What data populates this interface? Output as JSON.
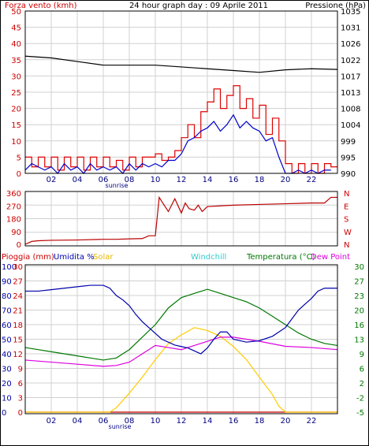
{
  "header": {
    "wind_label": "Forza vento (kmh)",
    "title": "24 hour graph day : 09 Aprile 2011",
    "pressure_label": "Pressione (hPa)"
  },
  "legend_bottom": {
    "rain": "Pioggia (mm)",
    "humidity": "Umidita %",
    "solar": "Solar",
    "windchill": "Windchill",
    "temperature": "Temperatura (°C)",
    "dewpoint": "Dew Point"
  },
  "sunrise_label": "sunrise",
  "colors": {
    "wind_gust": "#dd0000",
    "wind_avg": "#0000cc",
    "pressure": "#000000",
    "direction": "#bb0000",
    "rain": "#cc0000",
    "humidity": "#0000aa",
    "solar": "#ffcc00",
    "windchill": "#00cccc",
    "temperature": "#007700",
    "dewpoint": "#dd00dd",
    "axis_red": "#cc0000",
    "axis_blue": "#0000aa",
    "axis_green": "#007700",
    "grid": "#d0d0d0"
  },
  "chart_data": [
    {
      "type": "line",
      "panel": "wind-pressure",
      "title": "24 hour graph day : 09 Aprile 2011",
      "x_ticks": [
        "02",
        "04",
        "06",
        "08",
        "10",
        "12",
        "14",
        "16",
        "18",
        "20",
        "22"
      ],
      "xlim": [
        0,
        24
      ],
      "ylim_left": [
        0,
        50
      ],
      "yticks_left": [
        0,
        5,
        10,
        15,
        20,
        25,
        30,
        35,
        40,
        45,
        50
      ],
      "ylabel_left": "Forza vento (kmh)",
      "ylim_right": [
        990,
        1035
      ],
      "yticks_right": [
        990,
        995,
        999,
        1004,
        1008,
        1013,
        1017,
        1022,
        1026,
        1031,
        1035
      ],
      "ylabel_right": "Pressione (hPa)",
      "grid": true,
      "series": [
        {
          "name": "Gust",
          "color": "#dd0000",
          "axis": "left",
          "x": [
            0,
            0.5,
            1,
            1.5,
            2,
            2.5,
            3,
            3.5,
            4,
            4.5,
            5,
            5.5,
            6,
            6.5,
            7,
            7.5,
            8,
            8.5,
            9,
            9.5,
            10,
            10.5,
            11,
            11.5,
            12,
            12.5,
            13,
            13.5,
            14,
            14.5,
            15,
            15.5,
            16,
            16.5,
            17,
            17.5,
            18,
            18.5,
            19,
            19.5,
            20,
            20.5,
            21,
            21.5,
            22,
            22.5,
            23,
            23.5
          ],
          "values": [
            5,
            2,
            5,
            2,
            5,
            1,
            5,
            2,
            5,
            1,
            5,
            2,
            5,
            2,
            4,
            1,
            5,
            2,
            5,
            5,
            6,
            4,
            5,
            7,
            11,
            15,
            11,
            19,
            22,
            26,
            20,
            24,
            27,
            20,
            23,
            17,
            21,
            12,
            17,
            10,
            3,
            0,
            3,
            0,
            3,
            0,
            3,
            2
          ]
        },
        {
          "name": "Average",
          "color": "#0000cc",
          "axis": "left",
          "x": [
            0,
            0.5,
            1,
            1.5,
            2,
            2.5,
            3,
            3.5,
            4,
            4.5,
            5,
            5.5,
            6,
            6.5,
            7,
            7.5,
            8,
            8.5,
            9,
            9.5,
            10,
            10.5,
            11,
            11.5,
            12,
            12.5,
            13,
            13.5,
            14,
            14.5,
            15,
            15.5,
            16,
            16.5,
            17,
            17.5,
            18,
            18.5,
            19,
            19.5,
            20,
            20.5,
            21,
            21.5,
            22,
            22.5,
            23,
            23.5
          ],
          "values": [
            1,
            3,
            2,
            1,
            2,
            0,
            3,
            1,
            2,
            0,
            3,
            1,
            2,
            1,
            2,
            0,
            3,
            1,
            3,
            2,
            3,
            2,
            4,
            4,
            6,
            10,
            11,
            13,
            14,
            16,
            13,
            15,
            18,
            14,
            16,
            14,
            13,
            10,
            11,
            5,
            0,
            0,
            1,
            0,
            1,
            0,
            1,
            1
          ]
        },
        {
          "name": "Pressure",
          "color": "#000000",
          "axis": "right",
          "x": [
            0,
            2,
            4,
            6,
            8,
            10,
            12,
            14,
            16,
            18,
            20,
            22,
            24
          ],
          "values": [
            1022.5,
            1022,
            1021,
            1020,
            1020,
            1020,
            1019.5,
            1019,
            1018.5,
            1018,
            1018.7,
            1019,
            1018.8
          ]
        }
      ]
    },
    {
      "type": "line",
      "panel": "wind-direction",
      "xlim": [
        0,
        24
      ],
      "ylim": [
        0,
        360
      ],
      "yticks": [
        0,
        90,
        180,
        270,
        360
      ],
      "right_labels": [
        "N",
        "W",
        "S",
        "E",
        "N"
      ],
      "grid": true,
      "series": [
        {
          "name": "Direction",
          "color": "#bb0000",
          "x": [
            0,
            0.5,
            1,
            2,
            4,
            6,
            7,
            8,
            9,
            9.5,
            10,
            10.3,
            10.5,
            11,
            11.5,
            12,
            12.3,
            12.6,
            13,
            13.3,
            13.6,
            14,
            15,
            16,
            18,
            20,
            22,
            23,
            23.5,
            24
          ],
          "values": [
            0,
            20,
            25,
            28,
            30,
            35,
            35,
            38,
            40,
            60,
            60,
            330,
            300,
            230,
            320,
            220,
            290,
            250,
            240,
            275,
            230,
            265,
            270,
            275,
            280,
            285,
            290,
            290,
            330,
            330
          ]
        }
      ]
    },
    {
      "type": "line",
      "panel": "temperature-humidity",
      "xlim": [
        0,
        24
      ],
      "ylim_humidity": [
        0,
        100
      ],
      "yticks_humidity": [
        0,
        10,
        20,
        30,
        40,
        50,
        60,
        70,
        80,
        90,
        100
      ],
      "yticks_rain": [
        0,
        3,
        6,
        9,
        12,
        15,
        18,
        21,
        24,
        27,
        30
      ],
      "ylim_temperature": [
        -5,
        30
      ],
      "yticks_temperature": [
        -5,
        -2,
        2,
        6,
        9,
        13,
        16,
        20,
        23,
        27,
        30
      ],
      "grid": true,
      "series": [
        {
          "name": "Pioggia (mm)",
          "color": "#cc0000",
          "axis": "rain",
          "x": [
            0,
            24
          ],
          "values": [
            0,
            0
          ]
        },
        {
          "name": "Umidita %",
          "color": "#0000aa",
          "axis": "humidity",
          "x": [
            0,
            1,
            2,
            3,
            4,
            5,
            6,
            6.5,
            7,
            7.5,
            8,
            8.5,
            9,
            9.5,
            10,
            10.5,
            11,
            11.5,
            12,
            12.5,
            13,
            13.5,
            14,
            14.5,
            15,
            15.5,
            16,
            17,
            18,
            19,
            20,
            20.5,
            21,
            21.5,
            22,
            22.5,
            23,
            24
          ],
          "values": [
            83,
            83,
            84,
            85,
            86,
            87,
            87,
            85,
            80,
            77,
            73,
            67,
            62,
            58,
            54,
            50,
            48,
            46,
            45,
            44,
            42,
            40,
            44,
            50,
            55,
            55,
            50,
            48,
            49,
            52,
            58,
            64,
            70,
            74,
            78,
            83,
            85,
            85
          ]
        },
        {
          "name": "Solar",
          "color": "#ffcc00",
          "axis": "humidity",
          "x": [
            0,
            6.5,
            7,
            8,
            9,
            10,
            11,
            12,
            13,
            14,
            15,
            16,
            17,
            18,
            19,
            19.5,
            20,
            24
          ],
          "values": [
            0,
            0,
            3,
            13,
            24,
            36,
            47,
            53,
            58,
            56,
            52,
            45,
            36,
            24,
            12,
            4,
            0,
            0
          ]
        },
        {
          "name": "Temperatura (°C)",
          "color": "#007700",
          "axis": "temperature",
          "x": [
            0,
            1,
            2,
            3,
            4,
            5,
            6,
            7,
            7.5,
            8,
            9,
            10,
            11,
            12,
            13,
            14,
            15,
            16,
            17,
            18,
            19,
            20,
            21,
            22,
            23,
            24
          ],
          "values": [
            10.5,
            10,
            9.5,
            9,
            8.5,
            8,
            7.5,
            8,
            9,
            10,
            13,
            16,
            20,
            22.5,
            23.5,
            24.5,
            23.5,
            22.5,
            21.5,
            20,
            18,
            16,
            14,
            12.5,
            11.5,
            11
          ]
        },
        {
          "name": "Dew Point",
          "color": "#dd00dd",
          "axis": "temperature",
          "x": [
            0,
            2,
            4,
            6,
            7,
            8,
            9,
            10,
            11,
            12,
            13,
            14,
            15,
            16,
            17,
            18,
            20,
            22,
            24
          ],
          "values": [
            7.5,
            7,
            6.5,
            6,
            6.2,
            7,
            9,
            11,
            10.5,
            10,
            11,
            12,
            13,
            13,
            12.5,
            12,
            10.8,
            10.5,
            10
          ]
        }
      ]
    }
  ]
}
